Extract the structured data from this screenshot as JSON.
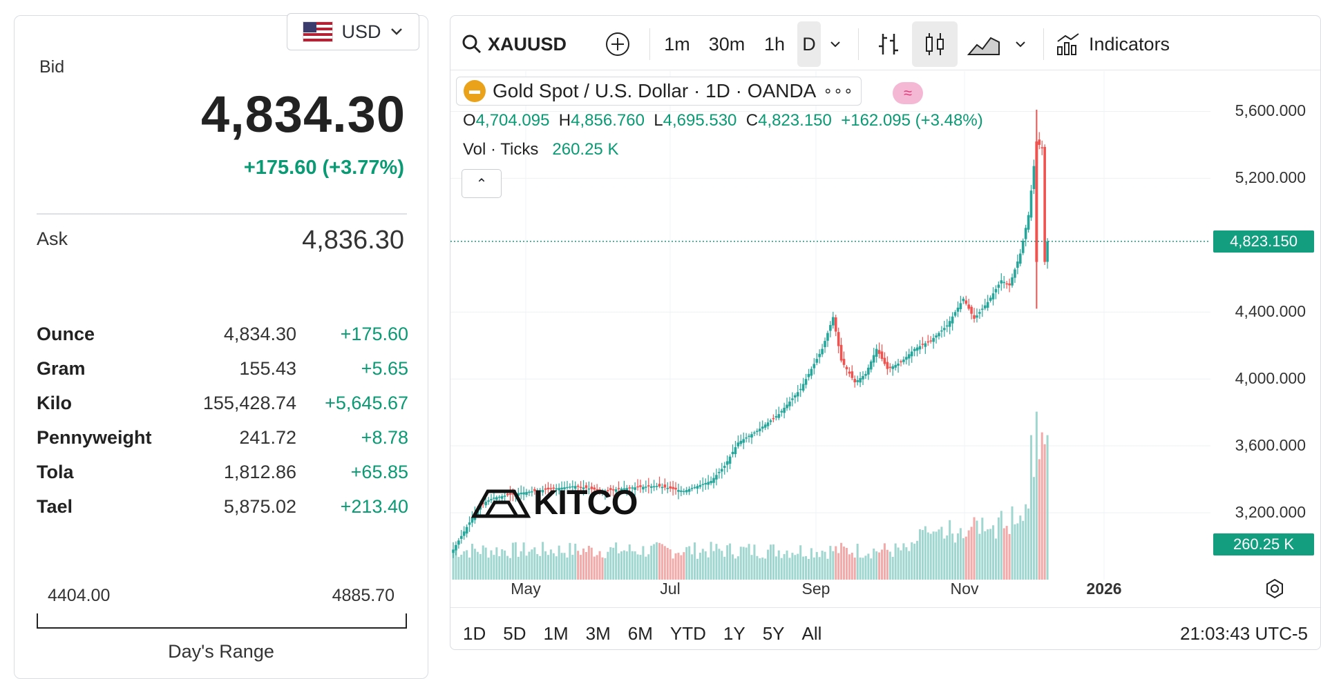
{
  "currency": {
    "code": "USD"
  },
  "quote": {
    "bid_label": "Bid",
    "bid_value": "4,834.30",
    "bid_change": "+175.60 (+3.77%)",
    "ask_label": "Ask",
    "ask_value": "4,836.30"
  },
  "units": [
    {
      "name": "Ounce",
      "value": "4,834.30",
      "change": "+175.60"
    },
    {
      "name": "Gram",
      "value": "155.43",
      "change": "+5.65"
    },
    {
      "name": "Kilo",
      "value": "155,428.74",
      "change": "+5,645.67"
    },
    {
      "name": "Pennyweight",
      "value": "241.72",
      "change": "+8.78"
    },
    {
      "name": "Tola",
      "value": "1,812.86",
      "change": "+65.85"
    },
    {
      "name": "Tael",
      "value": "5,875.02",
      "change": "+213.40"
    }
  ],
  "day_range": {
    "low": "4404.00",
    "high": "4885.70",
    "title": "Day's Range"
  },
  "chart": {
    "symbol": "XAUUSD",
    "intervals": [
      "1m",
      "30m",
      "1h",
      "D"
    ],
    "active_interval": "D",
    "indicators_label": "Indicators",
    "legend_title": "Gold Spot / U.S. Dollar · 1D · OANDA",
    "legend_more": "∘∘∘",
    "pink_glyph": "≈",
    "ohlc": {
      "o_label": "O",
      "o": "4,704.095",
      "h_label": "H",
      "h": "4,856.760",
      "l_label": "L",
      "l": "4,695.530",
      "c_label": "C",
      "c": "4,823.150",
      "change": "+162.095 (+3.48%)"
    },
    "vol_label": "Vol · Ticks",
    "vol_value": "260.25 K",
    "collapse_glyph": "⌃",
    "price_labels": [
      "5,600.000",
      "5,200.000",
      "4,400.000",
      "4,000.000",
      "3,600.000",
      "3,200.000"
    ],
    "last_price_tag": "4,823.150",
    "last_volume_tag": "260.25 K",
    "time_labels": [
      "May",
      "Jul",
      "Sep",
      "Nov",
      "2026"
    ],
    "ranges": [
      "1D",
      "5D",
      "1M",
      "3M",
      "6M",
      "YTD",
      "1Y",
      "5Y",
      "All"
    ],
    "clock": "21:03:43 UTC-5",
    "watermark": "KITCO",
    "colors": {
      "up": "#26a69a",
      "down": "#ef5350",
      "accent": "#149e80"
    }
  },
  "chart_data": {
    "type": "candlestick",
    "title": "Gold Spot / U.S. Dollar · 1D · OANDA",
    "ylim": [
      2800,
      5800
    ],
    "yticks": [
      3200,
      3600,
      4000,
      4400,
      5200,
      5600
    ],
    "x_ticks": [
      "May",
      "Jul",
      "Sep",
      "Nov",
      "2026"
    ],
    "close_path": [
      {
        "i": 0,
        "close": 2980
      },
      {
        "i": 10,
        "close": 3250
      },
      {
        "i": 15,
        "close": 3290
      },
      {
        "i": 25,
        "close": 3320
      },
      {
        "i": 35,
        "close": 3340
      },
      {
        "i": 45,
        "close": 3360
      },
      {
        "i": 55,
        "close": 3330
      },
      {
        "i": 65,
        "close": 3350
      },
      {
        "i": 75,
        "close": 3360
      },
      {
        "i": 85,
        "close": 3330
      },
      {
        "i": 95,
        "close": 3390
      },
      {
        "i": 100,
        "close": 3480
      },
      {
        "i": 105,
        "close": 3620
      },
      {
        "i": 112,
        "close": 3690
      },
      {
        "i": 120,
        "close": 3790
      },
      {
        "i": 128,
        "close": 3940
      },
      {
        "i": 136,
        "close": 4180
      },
      {
        "i": 140,
        "close": 4370
      },
      {
        "i": 143,
        "close": 4110
      },
      {
        "i": 148,
        "close": 3980
      },
      {
        "i": 152,
        "close": 4030
      },
      {
        "i": 156,
        "close": 4180
      },
      {
        "i": 160,
        "close": 4060
      },
      {
        "i": 165,
        "close": 4100
      },
      {
        "i": 170,
        "close": 4180
      },
      {
        "i": 176,
        "close": 4230
      },
      {
        "i": 182,
        "close": 4320
      },
      {
        "i": 188,
        "close": 4480
      },
      {
        "i": 192,
        "close": 4360
      },
      {
        "i": 197,
        "close": 4460
      },
      {
        "i": 202,
        "close": 4590
      },
      {
        "i": 205,
        "close": 4560
      },
      {
        "i": 209,
        "close": 4750
      },
      {
        "i": 212,
        "close": 4980
      },
      {
        "i": 215,
        "close": 5420
      },
      {
        "i": 217,
        "close": 5380
      },
      {
        "i": 218,
        "close": 4700
      },
      {
        "i": 219,
        "close": 4823
      }
    ],
    "last_close": 4823.15,
    "last_volume": "260.25 K"
  }
}
